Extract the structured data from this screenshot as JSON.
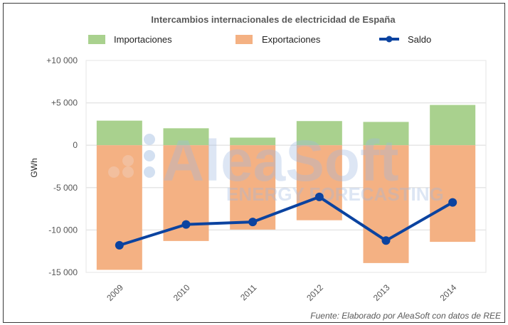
{
  "chart_data": {
    "type": "bar",
    "title": "Intercambios internacionales de electricidad de España",
    "ylabel": "GWh",
    "xlabel": "",
    "ylim": [
      -15000,
      10000
    ],
    "yticks": [
      10000,
      5000,
      0,
      -5000,
      -10000,
      -15000
    ],
    "ytick_labels": [
      "+10 000",
      "+5 000",
      "0",
      "-5 000",
      "-10 000",
      "-15 000"
    ],
    "grid": true,
    "legend_position": "top",
    "categories": [
      "2009",
      "2010",
      "2011",
      "2012",
      "2013",
      "2014"
    ],
    "series": [
      {
        "name": "Importaciones",
        "kind": "bar",
        "color": "#a9d18e",
        "values": [
          2900,
          2000,
          900,
          2850,
          2750,
          4750
        ]
      },
      {
        "name": "Exportaciones",
        "kind": "bar",
        "color": "#f4b183",
        "values": [
          -14700,
          -11300,
          -9950,
          -8850,
          -13900,
          -11400
        ]
      },
      {
        "name": "Saldo",
        "kind": "line",
        "color": "#0b43a0",
        "values": [
          -11800,
          -9350,
          -9050,
          -6100,
          -11250,
          -6750
        ]
      }
    ],
    "source": "Fuente: Elaborado por AleaSoft con datos de REE",
    "watermark": [
      "AleaSoft",
      "ENERGY FORECASTING"
    ]
  }
}
